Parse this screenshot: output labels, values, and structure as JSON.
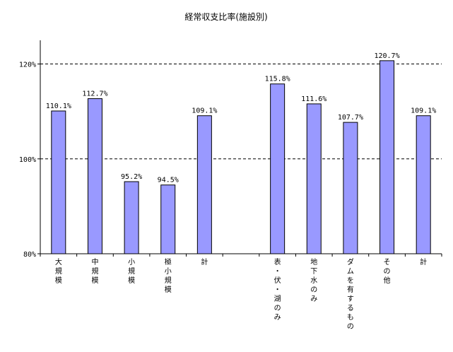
{
  "chart_data": {
    "type": "bar",
    "title": "経常収支比率(施設別)",
    "xlabel": "",
    "ylabel": "",
    "ylim": [
      80,
      125
    ],
    "yticks": [
      80,
      100,
      120
    ],
    "ytick_labels": [
      "80%",
      "100%",
      "120%"
    ],
    "gridlines_dashed_at": [
      100,
      120
    ],
    "bar_color": "#9999ff",
    "categories": [
      "大規模",
      "中規模",
      "小規模",
      "極小規模",
      "計",
      "",
      "表・伏・湖のみ",
      "地下水のみ",
      "ダムを有するもの",
      "その他",
      "計"
    ],
    "values": [
      110.1,
      112.7,
      95.2,
      94.5,
      109.1,
      null,
      115.8,
      111.6,
      107.7,
      120.7,
      109.1
    ],
    "data_labels": [
      "110.1%",
      "112.7%",
      "95.2%",
      "94.5%",
      "109.1%",
      "",
      "115.8%",
      "111.6%",
      "107.7%",
      "120.7%",
      "109.1%"
    ]
  }
}
